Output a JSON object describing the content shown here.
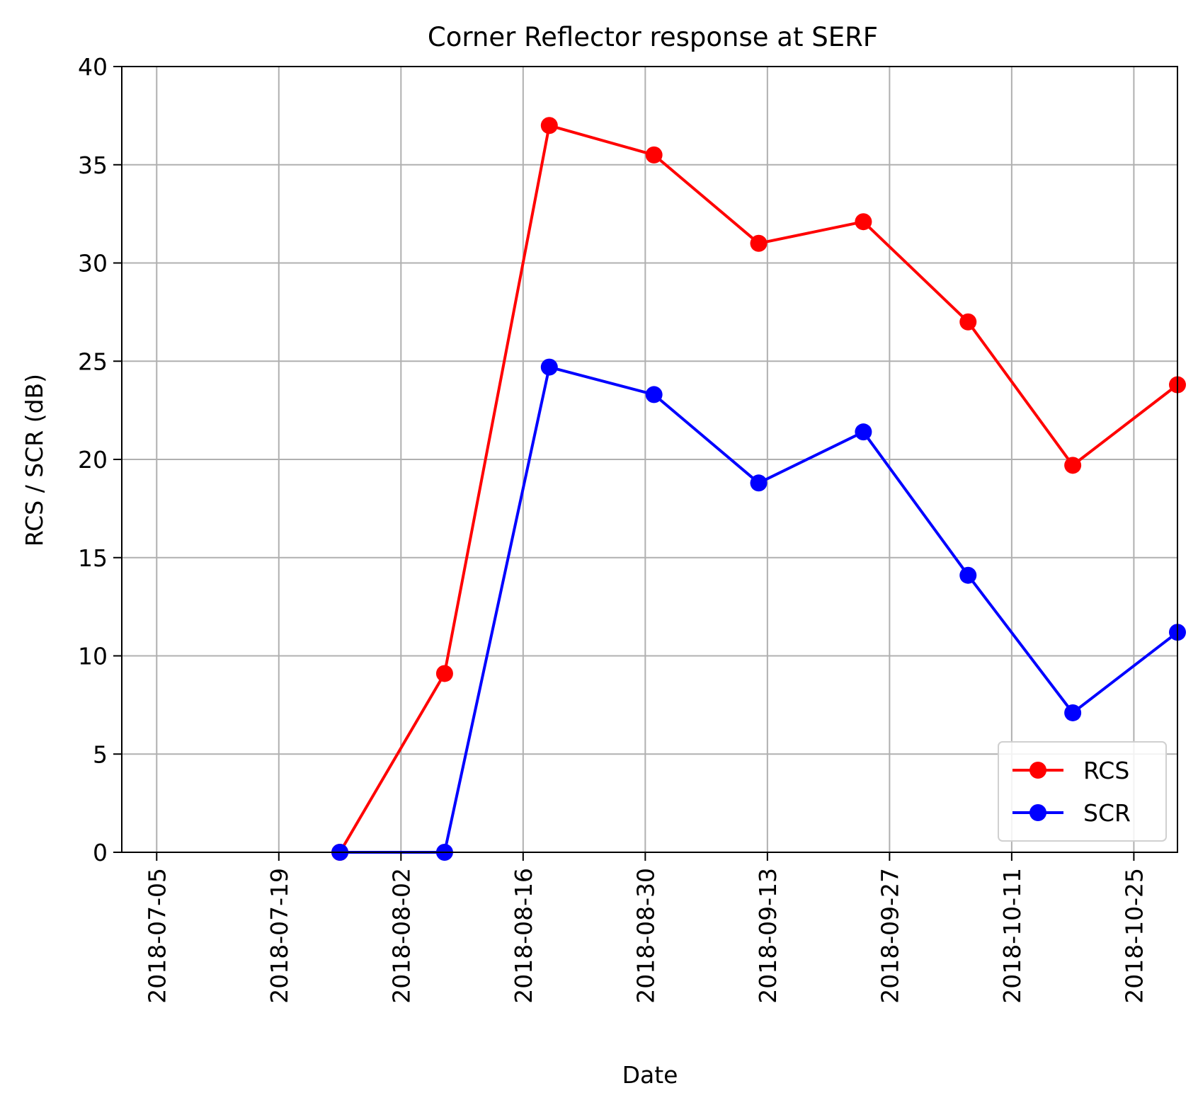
{
  "chart_data": {
    "type": "line",
    "title": "Corner Reflector response at SERF",
    "xlabel": "Date",
    "ylabel": "RCS / SCR (dB)",
    "xlim": [
      "2018-07-01",
      "2018-10-30"
    ],
    "ylim": [
      0,
      40
    ],
    "x_ticks": [
      "2018-07-05",
      "2018-07-19",
      "2018-08-02",
      "2018-08-16",
      "2018-08-30",
      "2018-09-13",
      "2018-09-27",
      "2018-10-11",
      "2018-10-25"
    ],
    "y_ticks": [
      0,
      5,
      10,
      15,
      20,
      25,
      30,
      35,
      40
    ],
    "grid": true,
    "legend": "lower-right",
    "x": [
      "2018-07-26",
      "2018-08-07",
      "2018-08-19",
      "2018-08-31",
      "2018-09-12",
      "2018-09-24",
      "2018-10-06",
      "2018-10-18",
      "2018-10-30"
    ],
    "series": [
      {
        "name": "RCS",
        "color": "#ff0000",
        "marker": "circle",
        "values": [
          0,
          9.1,
          37.0,
          35.5,
          31.0,
          32.1,
          27.0,
          19.7,
          23.8
        ]
      },
      {
        "name": "SCR",
        "color": "#0000ff",
        "marker": "circle",
        "values": [
          0,
          0,
          24.7,
          23.3,
          18.8,
          21.4,
          14.1,
          7.1,
          11.2
        ]
      }
    ]
  }
}
